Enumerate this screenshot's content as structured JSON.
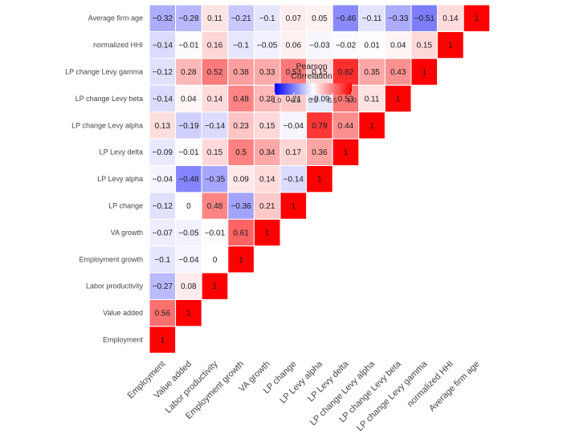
{
  "chart_data": {
    "type": "heatmap",
    "layout": "lower-triangle",
    "variables": [
      "Employment",
      "Value added",
      "Labor productivity",
      "Employment growth",
      "VA growth",
      "LP change",
      "LP Levy alpha",
      "LP Levy delta",
      "LP change Levy alpha",
      "LP change Levy beta",
      "LP change Levy gamma",
      "normalized HHI",
      "Average firm age"
    ],
    "labels": [
      [
        "1"
      ],
      [
        "0.56",
        "1"
      ],
      [
        "−0.27",
        "0.08",
        "1"
      ],
      [
        "−0.1",
        "−0.04",
        "0",
        "1"
      ],
      [
        "−0.07",
        "−0.05",
        "−0.01",
        "0.61",
        "1"
      ],
      [
        "−0.12",
        "0",
        "0.48",
        "−0.36",
        "0.21",
        "1"
      ],
      [
        "−0.04",
        "−0.48",
        "−0.35",
        "0.09",
        "0.14",
        "−0.14",
        "1"
      ],
      [
        "−0.09",
        "−0.01",
        "0.15",
        "0.5",
        "0.34",
        "0.17",
        "0.36",
        "1"
      ],
      [
        "0.13",
        "−0.19",
        "−0.14",
        "0.23",
        "0.15",
        "−0.04",
        "0.79",
        "0.44",
        "1"
      ],
      [
        "−0.14",
        "0.04",
        "0.14",
        "0.48",
        "0.28",
        "0.21",
        "−0.09",
        "0.53",
        "0.11",
        "1"
      ],
      [
        "−0.12",
        "0.28",
        "0.52",
        "0.38",
        "0.33",
        "0.53",
        "0.15",
        "0.82",
        "0.35",
        "0.43",
        "1"
      ],
      [
        "−0.14",
        "−0.01",
        "0.16",
        "−0.1",
        "−0.05",
        "0.06",
        "−0.03",
        "−0.02",
        "0.01",
        "0.04",
        "0.15",
        "1"
      ],
      [
        "−0.32",
        "−0.28",
        "0.11",
        "−0.21",
        "−0.1",
        "0.07",
        "0.05",
        "−0.46",
        "−0.11",
        "−0.33",
        "−0.51",
        "0.14",
        "1"
      ]
    ],
    "values": [
      [
        1
      ],
      [
        0.56,
        1
      ],
      [
        -0.27,
        0.08,
        1
      ],
      [
        -0.1,
        -0.04,
        0,
        1
      ],
      [
        -0.07,
        -0.05,
        -0.01,
        0.61,
        1
      ],
      [
        -0.12,
        0,
        0.48,
        -0.36,
        0.21,
        1
      ],
      [
        -0.04,
        -0.48,
        -0.35,
        0.09,
        0.14,
        -0.14,
        1
      ],
      [
        -0.09,
        -0.01,
        0.15,
        0.5,
        0.34,
        0.17,
        0.36,
        1
      ],
      [
        0.13,
        -0.19,
        -0.14,
        0.23,
        0.15,
        -0.04,
        0.79,
        0.44,
        1
      ],
      [
        -0.14,
        0.04,
        0.14,
        0.48,
        0.28,
        0.21,
        -0.09,
        0.53,
        0.11,
        1
      ],
      [
        -0.12,
        0.28,
        0.52,
        0.38,
        0.33,
        0.53,
        0.15,
        0.82,
        0.35,
        0.43,
        1
      ],
      [
        -0.14,
        -0.01,
        0.16,
        -0.1,
        -0.05,
        0.06,
        -0.03,
        -0.02,
        0.01,
        0.04,
        0.15,
        1
      ],
      [
        -0.32,
        -0.28,
        0.11,
        -0.21,
        -0.1,
        0.07,
        0.05,
        -0.46,
        -0.11,
        -0.33,
        -0.51,
        0.14,
        1
      ]
    ],
    "legend": {
      "title_lines": [
        "Pearson",
        "Correlation"
      ],
      "ticks": [
        -1,
        -0.5,
        0,
        0.5,
        1
      ],
      "tick_labels": [
        "−1.0",
        "−0.5",
        "0.0",
        "0.5",
        "1.0"
      ],
      "range": [
        -1,
        1
      ],
      "placement": "top-center"
    },
    "colors": {
      "low": "#0000ff",
      "mid": "#ffffff",
      "high": "#ff0000"
    },
    "grid": false
  }
}
